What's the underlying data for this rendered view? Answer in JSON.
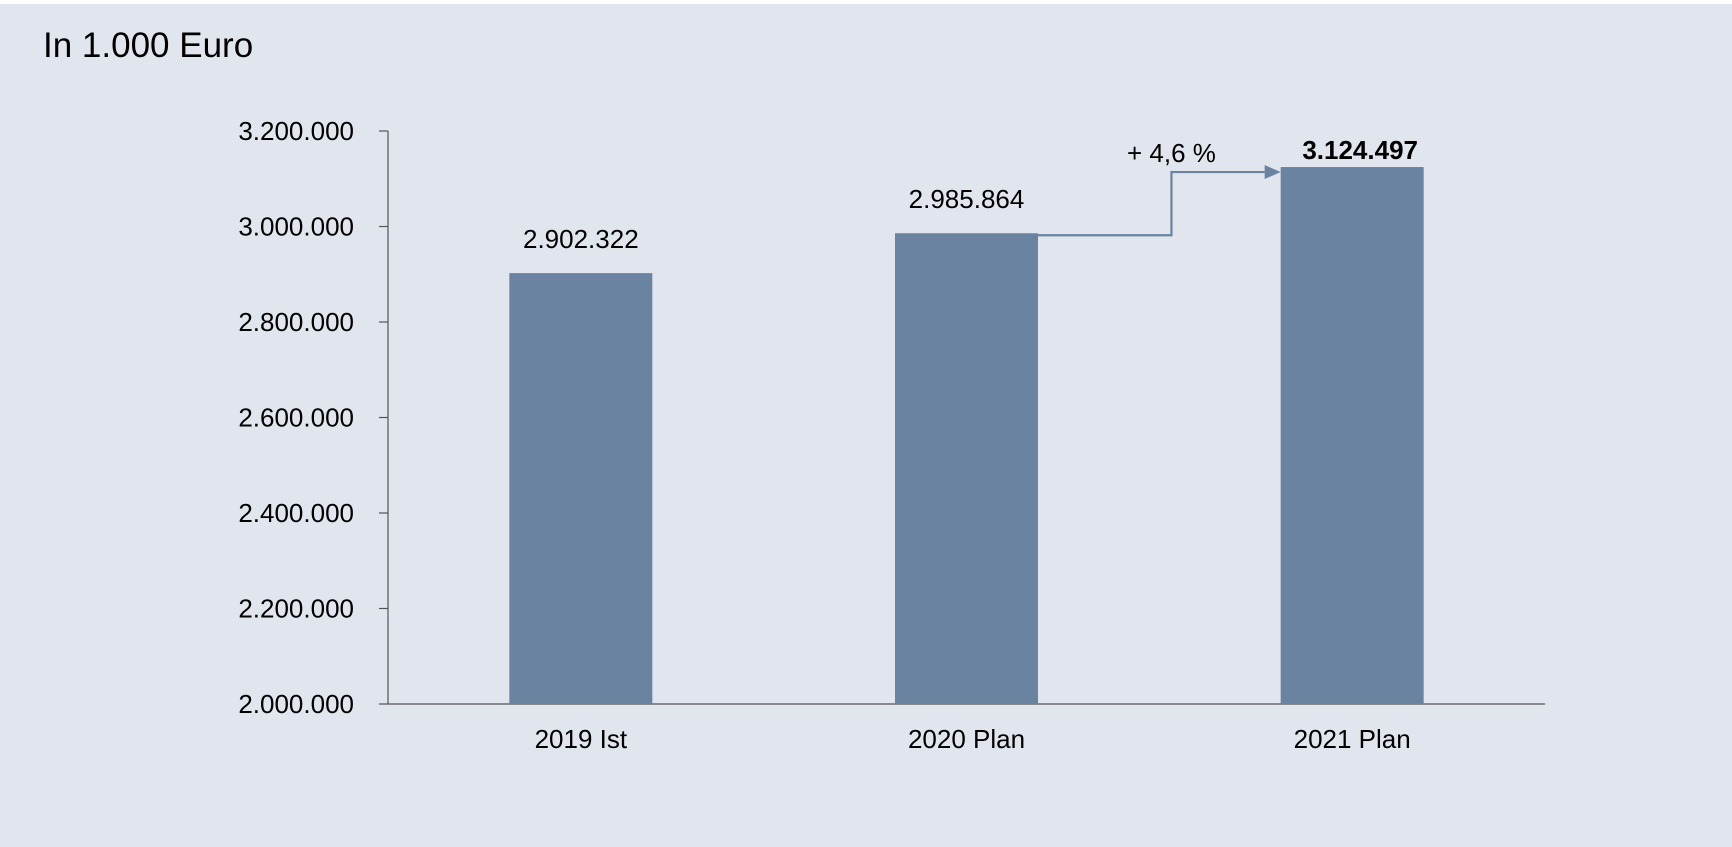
{
  "unit_label": "In 1.000 Euro",
  "chart_data": {
    "type": "bar",
    "title": "",
    "xlabel": "",
    "ylabel": "",
    "categories": [
      "2019 Ist",
      "2020 Plan",
      "2021 Plan"
    ],
    "values": [
      2902322,
      2985864,
      3124497
    ],
    "value_labels": [
      "2.902.322",
      "2.985.864",
      "3.124.497"
    ],
    "highlight_index": 2,
    "ylim": [
      2000000,
      3200000
    ],
    "yticks": [
      2000000,
      2200000,
      2400000,
      2600000,
      2800000,
      3000000,
      3200000
    ],
    "ytick_labels": [
      "2.000.000",
      "2.200.000",
      "2.400.000",
      "2.600.000",
      "2.800.000",
      "3.000.000",
      "3.200.000"
    ],
    "grid": false,
    "legend": "none",
    "annotation": {
      "text": "+ 4,6 %",
      "from_index": 1,
      "to_index": 2
    },
    "colors": {
      "bar": "#6a83a0",
      "arrow": "#6a83a0",
      "axis": "#555555",
      "text": "#000000"
    }
  }
}
